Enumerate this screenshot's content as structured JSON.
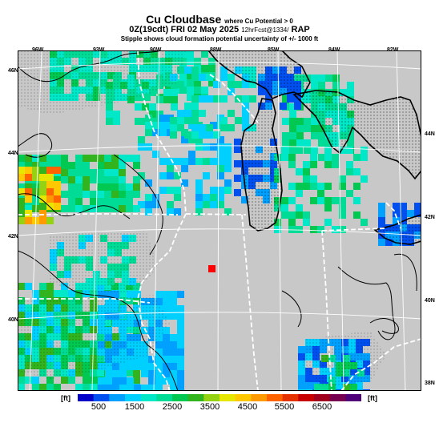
{
  "title": {
    "main": "Cu Cloudbase",
    "qualifier": "where Cu Potential > 0",
    "valid_time": "0Z(19cdt) FRI 02 May 2025",
    "run_info": "12hrFcst@1334/",
    "model": "RAP",
    "subtitle": "Stipple shows cloud formation potential uncertainty of +/- 1000 ft"
  },
  "longitude_labels": [
    "96W",
    "93W",
    "90W",
    "88W",
    "85W",
    "84W",
    "82W"
  ],
  "latitude_labels": [
    "46N",
    "44N",
    "42N",
    "40N",
    "44N",
    "42N",
    "40N",
    "38N"
  ],
  "colorbar": {
    "unit_left": "[ft]",
    "unit_right": "[ft]",
    "tick_labels": [
      "500",
      "1500",
      "2500",
      "3500",
      "4500",
      "5500",
      "6500"
    ],
    "colors": [
      "#0000c8",
      "#0050f0",
      "#00a0ff",
      "#00d0ff",
      "#00e8c8",
      "#00dc96",
      "#00c850",
      "#32b41e",
      "#96d214",
      "#e6e600",
      "#ffc800",
      "#ff9b00",
      "#ff6400",
      "#e63200",
      "#c80000",
      "#a0001e",
      "#780050",
      "#500078"
    ]
  },
  "map": {
    "background": "#c8c8c8",
    "lake_color": "#c8c8c8",
    "marker_color": "#ff0000"
  }
}
